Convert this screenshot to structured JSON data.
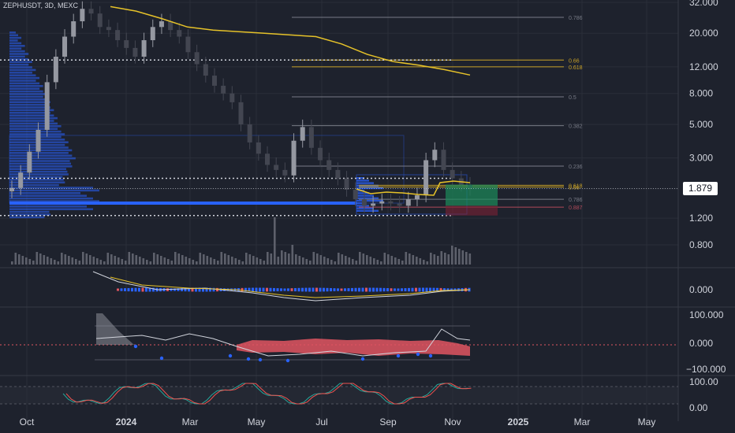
{
  "header": {
    "symbol_text": "ZEPHUSDT, 3D, MEXC"
  },
  "current_price": "1.879",
  "colors": {
    "background": "#1e222d",
    "grid": "#2a2e39",
    "volume_profile": "#2962ff",
    "fib_line": "#787b86",
    "fib_gold": "#c9a227",
    "fib_red": "#b04a5a",
    "ma_line": "#e6c229",
    "candle_up": "#9598a1",
    "candle_down": "#434651",
    "macd_hist_neg": "#e05561",
    "long_position_green": "#1b8a5a",
    "long_position_red": "#7b2233"
  },
  "chart_data": [
    {
      "type": "candlestick",
      "pane": "price",
      "scale": "log",
      "y_ticks": [
        "32.000",
        "20.000",
        "12.000",
        "8.000",
        "5.000",
        "3.000",
        "1.879",
        "1.200",
        "0.800"
      ],
      "x_ticks": [
        "Oct",
        "2024",
        "Mar",
        "May",
        "Jul",
        "Sep",
        "Nov",
        "2025",
        "Mar",
        "May"
      ],
      "fib_levels": [
        {
          "label": "0.786",
          "value": 25.5
        },
        {
          "label": "0.66",
          "value": 13.3
        },
        {
          "label": "0.618",
          "value": 12.0
        },
        {
          "label": "0.5",
          "value": 7.6
        },
        {
          "label": "0.382",
          "value": 4.9
        },
        {
          "label": "0.236",
          "value": 2.65
        },
        {
          "label": "0.618",
          "value": 1.98
        },
        {
          "label": "0.66",
          "value": 1.93
        },
        {
          "label": "0.786",
          "value": 1.6
        },
        {
          "label": "0.887",
          "value": 1.42
        }
      ],
      "close_prices": [
        1.9,
        2.4,
        3.3,
        4.6,
        9.5,
        14,
        19,
        24,
        29,
        27,
        22,
        21,
        18,
        16,
        14,
        18,
        22,
        24,
        21,
        19,
        15,
        12.5,
        10.5,
        9,
        8,
        7,
        5,
        3.8,
        3.2,
        2.7,
        2.5,
        2.3,
        3.9,
        4.8,
        3.5,
        2.9,
        2.5,
        2.2,
        1.85,
        1.6,
        1.45,
        1.5,
        1.55,
        1.5,
        1.45,
        1.6,
        1.7,
        2.9,
        3.4,
        2.5,
        2.2,
        2.0,
        1.879
      ],
      "moving_average": [
        30,
        28,
        25,
        22,
        21,
        20.5,
        20,
        19.5,
        19,
        17,
        14.5,
        13,
        12.3,
        11.5,
        10.6
      ]
    },
    {
      "type": "line",
      "pane": "macd",
      "y_ticks": [
        "0.000"
      ]
    },
    {
      "type": "histogram",
      "pane": "oscillator",
      "y_ticks": [
        "100.000",
        "0.000",
        "−100.000"
      ]
    },
    {
      "type": "line",
      "pane": "stochastic",
      "y_ticks": [
        "100.00",
        "0.00"
      ]
    }
  ]
}
